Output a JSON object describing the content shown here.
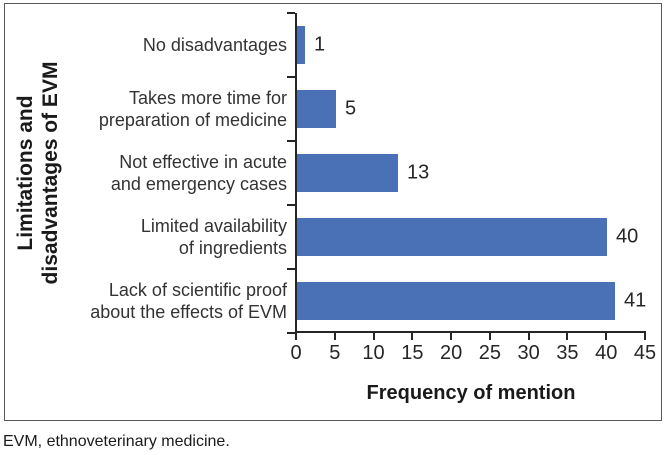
{
  "figure": {
    "footnote": "EVM, ethnoveterinary medicine."
  },
  "chart_data": {
    "type": "bar",
    "orientation": "horizontal",
    "title": "",
    "xlabel": "Frequency of mention",
    "ylabel": "Limitations and disadvantages of EVM",
    "ylabel_lines": [
      "Limitations and",
      "disadvantages of EVM"
    ],
    "categories": [
      "No disadvantages",
      "Takes more time for preparation of medicine",
      "Not effective in acute and emergency cases",
      "Limited availability of ingredients",
      "Lack of scientific proof about the effects of EVM"
    ],
    "category_label_lines": [
      [
        "No disadvantages"
      ],
      [
        "Takes more time for",
        "preparation of medicine"
      ],
      [
        "Not effective in acute",
        "and emergency cases"
      ],
      [
        "Limited availability",
        "of ingredients"
      ],
      [
        "Lack of scientific proof",
        "about the effects of EVM"
      ]
    ],
    "values": [
      1,
      5,
      13,
      40,
      41
    ],
    "data_labels": [
      "1",
      "5",
      "13",
      "40",
      "41"
    ],
    "x_ticks": [
      0,
      5,
      10,
      15,
      20,
      25,
      30,
      35,
      40,
      45
    ],
    "xlim": [
      0,
      45
    ],
    "grid": false,
    "legend": false,
    "bar_color": "#4A71B5",
    "axis_color": "#262626",
    "frame_border_color": "#58585A"
  }
}
